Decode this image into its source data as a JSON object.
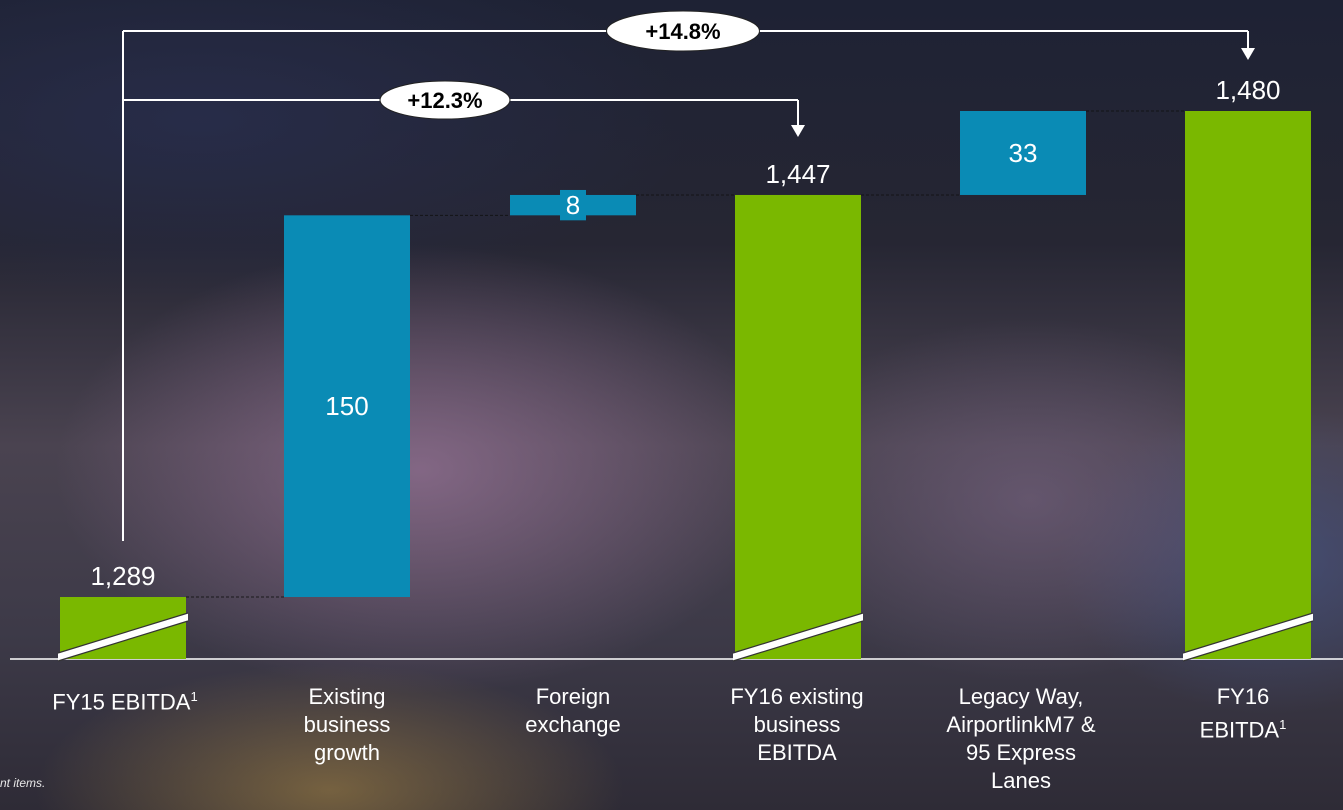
{
  "chart_data": {
    "type": "bar",
    "subtype": "waterfall",
    "categories": [
      {
        "label": "FY15 EBITDA",
        "footnote_mark": "1"
      },
      {
        "label": "Existing business growth",
        "footnote_mark": ""
      },
      {
        "label": "Foreign exchange",
        "footnote_mark": ""
      },
      {
        "label": "FY16 existing business EBITDA",
        "footnote_mark": ""
      },
      {
        "label": "Legacy Way, AirportlinkM7 & 95 Express Lanes",
        "footnote_mark": ""
      },
      {
        "label": "FY16 EBITDA",
        "footnote_mark": "1"
      }
    ],
    "bars": [
      {
        "kind": "total",
        "value": 1289,
        "label": "1,289"
      },
      {
        "kind": "increment",
        "start": 1289,
        "end": 1439,
        "value": 150,
        "label": "150"
      },
      {
        "kind": "increment",
        "start": 1439,
        "end": 1447,
        "value": 8,
        "label": "8"
      },
      {
        "kind": "total",
        "value": 1447,
        "label": "1,447"
      },
      {
        "kind": "increment",
        "start": 1447,
        "end": 1480,
        "value": 33,
        "label": "33"
      },
      {
        "kind": "total",
        "value": 1480,
        "label": "1,480"
      }
    ],
    "annotations": [
      {
        "from": 0,
        "to": 5,
        "text": "+14.8%"
      },
      {
        "from": 0,
        "to": 3,
        "text": "+12.3%"
      }
    ],
    "axis_break": true,
    "colors": {
      "total": "#7ab800",
      "increment": "#0a8bb5"
    }
  },
  "footnote": "nt items."
}
